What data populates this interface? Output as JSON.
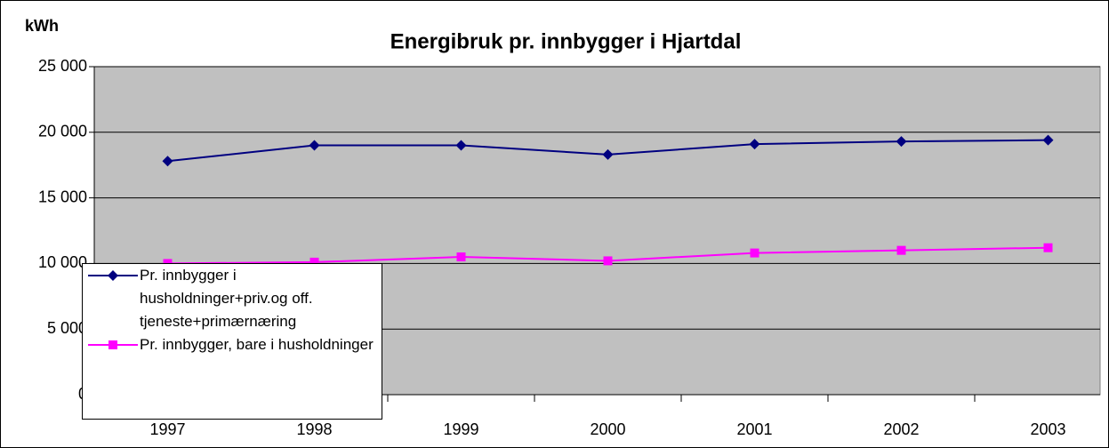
{
  "chart_data": {
    "type": "line",
    "title": "Energibruk pr. innbygger i Hjartdal",
    "y_label": "kWh",
    "categories": [
      "1997",
      "1998",
      "1999",
      "2000",
      "2001",
      "2002",
      "2003"
    ],
    "series": [
      {
        "name": "Pr. innbygger i husholdninger+priv.og off. tjeneste+primærnæring",
        "color": "#000080",
        "marker": "diamond",
        "values": [
          17800,
          19000,
          19000,
          18300,
          19100,
          19300,
          19400
        ]
      },
      {
        "name": "Pr. innbygger, bare i husholdninger",
        "color": "#ff00ff",
        "marker": "square",
        "values": [
          10000,
          10100,
          10500,
          10200,
          10800,
          11000,
          11200
        ]
      }
    ],
    "ylim": [
      0,
      25000
    ],
    "yticks": [
      {
        "value": 0,
        "label": "0"
      },
      {
        "value": 5000,
        "label": "5 000"
      },
      {
        "value": 10000,
        "label": "10 000"
      },
      {
        "value": 15000,
        "label": "15 000"
      },
      {
        "value": 20000,
        "label": "20 000"
      },
      {
        "value": 25000,
        "label": "25 000"
      }
    ],
    "grid": true,
    "legend": "lower left",
    "plot_background": "#c0c0c0"
  }
}
